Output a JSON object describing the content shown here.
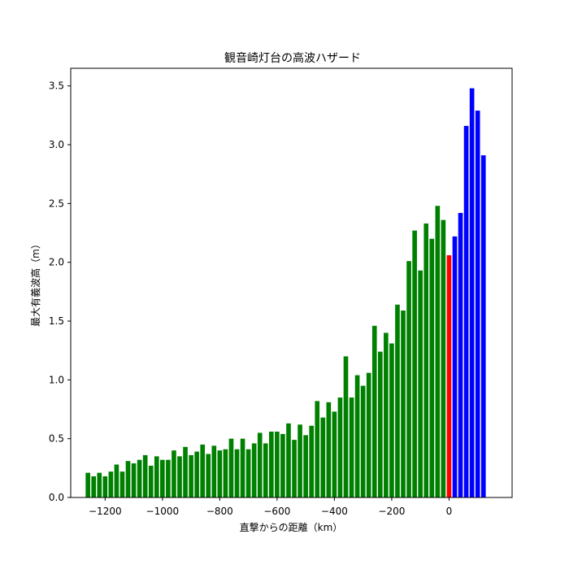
{
  "chart_data": {
    "type": "bar",
    "title": "観音崎灯台の高波ハザード",
    "xlabel": "直撃からの距離（km）",
    "ylabel": "最大有義波高（m）",
    "xlim": [
      -1320,
      220
    ],
    "ylim": [
      0,
      3.65
    ],
    "grid": false,
    "x_ticks": [
      -1200,
      -1000,
      -800,
      -600,
      -400,
      -200,
      0
    ],
    "x_tick_labels": [
      "−1200",
      "−1000",
      "−800",
      "−600",
      "−400",
      "−200",
      "0"
    ],
    "y_ticks": [
      0.0,
      0.5,
      1.0,
      1.5,
      2.0,
      2.5,
      3.0,
      3.5
    ],
    "y_tick_labels": [
      "0.0",
      "0.5",
      "1.0",
      "1.5",
      "2.0",
      "2.5",
      "3.0",
      "3.5"
    ],
    "colors": {
      "before": "#008000",
      "landfall": "#ff0000",
      "after": "#0000ff"
    },
    "bar_width_km": 16,
    "x": [
      -1260,
      -1240,
      -1220,
      -1200,
      -1180,
      -1160,
      -1140,
      -1120,
      -1100,
      -1080,
      -1060,
      -1040,
      -1020,
      -1000,
      -980,
      -960,
      -940,
      -920,
      -900,
      -880,
      -860,
      -840,
      -820,
      -800,
      -780,
      -760,
      -740,
      -720,
      -700,
      -680,
      -660,
      -640,
      -620,
      -600,
      -580,
      -560,
      -540,
      -520,
      -500,
      -480,
      -460,
      -440,
      -420,
      -400,
      -380,
      -360,
      -340,
      -320,
      -300,
      -280,
      -260,
      -240,
      -220,
      -200,
      -180,
      -160,
      -140,
      -120,
      -100,
      -80,
      -60,
      -40,
      -20,
      0,
      20,
      40,
      60,
      80,
      100,
      120
    ],
    "values": [
      0.21,
      0.18,
      0.21,
      0.18,
      0.22,
      0.28,
      0.22,
      0.31,
      0.29,
      0.32,
      0.36,
      0.27,
      0.35,
      0.32,
      0.32,
      0.4,
      0.35,
      0.43,
      0.36,
      0.39,
      0.45,
      0.37,
      0.44,
      0.4,
      0.41,
      0.5,
      0.41,
      0.5,
      0.41,
      0.46,
      0.55,
      0.46,
      0.56,
      0.56,
      0.54,
      0.63,
      0.49,
      0.62,
      0.53,
      0.61,
      0.82,
      0.68,
      0.81,
      0.73,
      0.85,
      1.2,
      0.85,
      1.04,
      0.95,
      1.06,
      1.46,
      1.24,
      1.4,
      1.31,
      1.64,
      1.59,
      2.01,
      2.27,
      1.93,
      2.33,
      2.2,
      2.48,
      2.36,
      2.06,
      2.22,
      2.42,
      3.16,
      3.48,
      3.29,
      2.91
    ],
    "landfall_x": 0
  }
}
